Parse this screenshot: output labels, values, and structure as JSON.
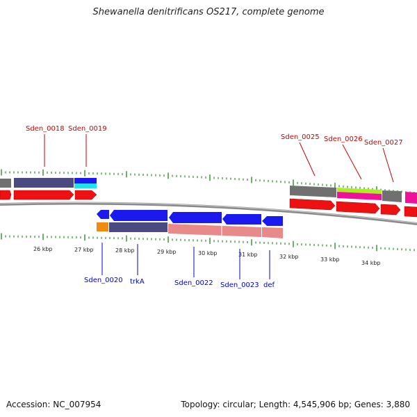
{
  "title": "Shewanella denitrificans OS217, complete genome",
  "footer": {
    "accession": "Accession: NC_007954",
    "topology": "Topology: circular; Length: 4,545,906 bp; Genes: 3,880"
  },
  "colors": {
    "top_label": "#cc0000",
    "bottom_label": "#0000cc",
    "tick": "#2e8b2e",
    "backbone": "#808080"
  },
  "scale_labels": [
    "26 kbp",
    "27 kbp",
    "28 kbp",
    "29 kbp",
    "30 kbp",
    "31 kbp",
    "32 kbp",
    "33 kbp",
    "34 kbp"
  ],
  "top_genes": [
    "Sden_0018",
    "Sden_0019",
    "Sden_0025",
    "Sden_0026",
    "Sden_0027"
  ],
  "bottom_genes": [
    "Sden_0020",
    "trkA",
    "Sden_0022",
    "Sden_0023",
    "def"
  ]
}
